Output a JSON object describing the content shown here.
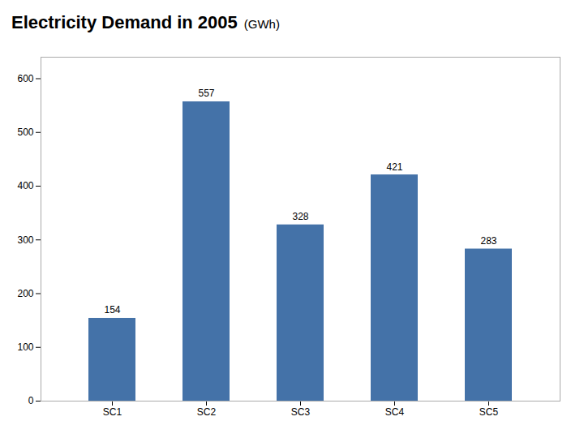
{
  "chart_data": {
    "type": "bar",
    "title": "Electricity Demand in 2005",
    "subtitle": "(GWh)",
    "categories": [
      "SC1",
      "SC2",
      "SC3",
      "SC4",
      "SC5"
    ],
    "values": [
      154,
      557,
      328,
      421,
      283
    ],
    "color": "#4472A8",
    "ylim": [
      0,
      640
    ],
    "yticks": [
      0,
      100,
      200,
      300,
      400,
      500,
      600
    ],
    "grid": false,
    "data_labels": true
  }
}
